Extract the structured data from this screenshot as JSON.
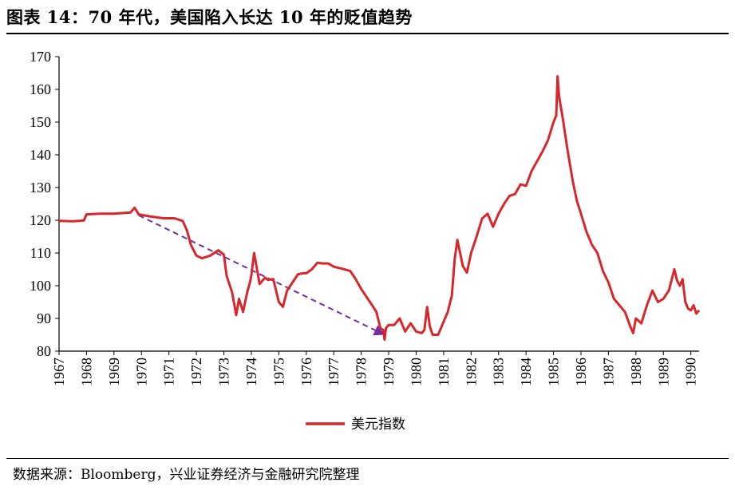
{
  "figure": {
    "title": "图表 14：70 年代，美国陷入长达 10 年的贬值趋势",
    "source": "数据来源：Bloomberg，兴业证券经济与金融研究院整理"
  },
  "chart_data": {
    "type": "line",
    "ylim": [
      80,
      170
    ],
    "yticks": [
      80,
      90,
      100,
      110,
      120,
      130,
      140,
      150,
      160,
      170
    ],
    "xlim": [
      1967,
      1990.3
    ],
    "xticks": [
      "1967",
      "1968",
      "1969",
      "1970",
      "1971",
      "1972",
      "1973",
      "1974",
      "1975",
      "1976",
      "1977",
      "1978",
      "1979",
      "1980",
      "1981",
      "1982",
      "1983",
      "1984",
      "1985",
      "1986",
      "1987",
      "1988",
      "1989",
      "1990"
    ],
    "legend_position": "bottom-center",
    "grid": false,
    "series": [
      {
        "name": "美元指数",
        "color": "#d9262a",
        "x": [
          1967.0,
          1967.5,
          1967.9,
          1968.0,
          1968.5,
          1969.0,
          1969.6,
          1969.75,
          1969.9,
          1970.3,
          1970.8,
          1971.2,
          1971.5,
          1971.65,
          1971.8,
          1972.0,
          1972.2,
          1972.5,
          1972.8,
          1973.0,
          1973.1,
          1973.3,
          1973.45,
          1973.55,
          1973.7,
          1973.85,
          1973.95,
          1974.0,
          1974.1,
          1974.3,
          1974.5,
          1974.6,
          1974.8,
          1975.0,
          1975.15,
          1975.3,
          1975.5,
          1975.7,
          1975.9,
          1976.0,
          1976.2,
          1976.4,
          1976.6,
          1976.8,
          1977.0,
          1977.3,
          1977.6,
          1977.8,
          1978.0,
          1978.2,
          1978.4,
          1978.55,
          1978.7,
          1978.8,
          1978.85,
          1978.9,
          1979.0,
          1979.2,
          1979.4,
          1979.6,
          1979.8,
          1980.0,
          1980.2,
          1980.3,
          1980.4,
          1980.5,
          1980.6,
          1980.8,
          1981.0,
          1981.15,
          1981.3,
          1981.4,
          1981.5,
          1981.7,
          1981.85,
          1982.0,
          1982.2,
          1982.4,
          1982.6,
          1982.8,
          1983.0,
          1983.2,
          1983.4,
          1983.6,
          1983.8,
          1984.0,
          1984.2,
          1984.4,
          1984.6,
          1984.8,
          1985.0,
          1985.1,
          1985.15,
          1985.2,
          1985.35,
          1985.5,
          1985.7,
          1985.85,
          1986.0,
          1986.2,
          1986.4,
          1986.6,
          1986.8,
          1987.0,
          1987.2,
          1987.4,
          1987.6,
          1987.8,
          1987.9,
          1988.0,
          1988.2,
          1988.4,
          1988.6,
          1988.8,
          1989.0,
          1989.2,
          1989.4,
          1989.5,
          1989.6,
          1989.7,
          1989.8,
          1989.9,
          1990.0,
          1990.1,
          1990.2,
          1990.3
        ],
        "y": [
          119.8,
          119.7,
          119.9,
          121.8,
          122.0,
          122.0,
          122.4,
          123.8,
          121.8,
          121.2,
          120.6,
          120.6,
          119.8,
          117.0,
          112.5,
          109.2,
          108.4,
          109.2,
          110.8,
          109.5,
          103.0,
          98.0,
          91.0,
          96.0,
          92.0,
          98.0,
          101.0,
          103.0,
          110.0,
          100.5,
          102.5,
          101.8,
          102.0,
          95.0,
          93.5,
          98.5,
          101.0,
          103.5,
          103.8,
          103.8,
          105.0,
          107.0,
          106.8,
          106.8,
          105.8,
          105.2,
          104.5,
          102.0,
          99.0,
          96.5,
          94.0,
          92.0,
          87.0,
          86.5,
          83.5,
          87.0,
          88.0,
          88.0,
          90.0,
          86.0,
          88.5,
          86.0,
          85.5,
          86.5,
          93.5,
          87.5,
          85.0,
          85.0,
          89.0,
          92.0,
          97.0,
          108.0,
          114.0,
          106.0,
          104.0,
          110.0,
          115.0,
          120.5,
          122.0,
          118.0,
          122.0,
          125.0,
          127.5,
          128.0,
          131.0,
          130.5,
          135.0,
          138.0,
          141.0,
          144.5,
          150.0,
          152.0,
          164.0,
          158.0,
          150.5,
          142.0,
          132.0,
          126.0,
          122.0,
          116.5,
          112.5,
          110.0,
          104.5,
          101.0,
          96.0,
          94.0,
          92.0,
          87.5,
          85.5,
          90.0,
          88.5,
          94.0,
          98.5,
          95.0,
          96.0,
          98.5,
          105.0,
          101.5,
          100.0,
          102.0,
          95.0,
          93.0,
          92.5,
          94.0,
          91.5,
          92.5
        ]
      }
    ],
    "annotation": {
      "type": "dashed-arrow",
      "color": "#7030a0",
      "from": [
        1969.9,
        121.5
      ],
      "to": [
        1978.85,
        85.0
      ]
    }
  }
}
